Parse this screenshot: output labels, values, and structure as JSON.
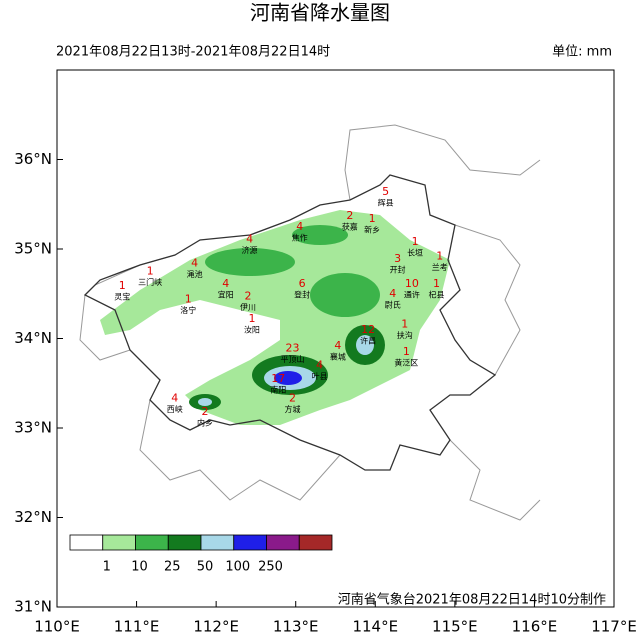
{
  "title": "河南省降水量图",
  "time_range": "2021年08月22日13时-2021年08月22日14时",
  "unit": "单位: mm",
  "map": {
    "xlim": [
      110,
      117
    ],
    "ylim": [
      31,
      37
    ],
    "xticks": [
      {
        "value": 110,
        "label": "110°E"
      },
      {
        "value": 111,
        "label": "111°E"
      },
      {
        "value": 112,
        "label": "112°E"
      },
      {
        "value": 113,
        "label": "113°E"
      },
      {
        "value": 114,
        "label": "114°E"
      },
      {
        "value": 115,
        "label": "115°E"
      },
      {
        "value": 116,
        "label": "116°E"
      },
      {
        "value": 117,
        "label": "117°E"
      }
    ],
    "yticks": [
      {
        "value": 31,
        "label": "31°N"
      },
      {
        "value": 32,
        "label": "32°N"
      },
      {
        "value": 33,
        "label": "33°N"
      },
      {
        "value": 34,
        "label": "34°N"
      },
      {
        "value": 35,
        "label": "35°N"
      },
      {
        "value": 36,
        "label": "36°N"
      }
    ]
  },
  "legend": {
    "colors": [
      "#ffffff",
      "#a6e89a",
      "#3cb44a",
      "#137a1f",
      "#a8d8e8",
      "#1f1fe8",
      "#8a1a8a",
      "#a52828"
    ],
    "thresholds": [
      1,
      10,
      25,
      50,
      100,
      250
    ]
  },
  "stations": [
    {
      "name": "灵宝",
      "value": 1,
      "lon": 110.82,
      "lat": 34.52
    },
    {
      "name": "三门峡",
      "value": 1,
      "lon": 111.17,
      "lat": 34.68
    },
    {
      "name": "渑池",
      "value": 4,
      "lon": 111.73,
      "lat": 34.77
    },
    {
      "name": "洛宁",
      "value": 1,
      "lon": 111.65,
      "lat": 34.37
    },
    {
      "name": "宜阳",
      "value": 4,
      "lon": 112.12,
      "lat": 34.54
    },
    {
      "name": "伊川",
      "value": 2,
      "lon": 112.4,
      "lat": 34.4
    },
    {
      "name": "汝阳",
      "value": 1,
      "lon": 112.45,
      "lat": 34.15
    },
    {
      "name": "西峡",
      "value": 4,
      "lon": 111.48,
      "lat": 33.26
    },
    {
      "name": "内乡",
      "value": 2,
      "lon": 111.86,
      "lat": 33.11
    },
    {
      "name": "南阳",
      "value": 17,
      "lon": 112.78,
      "lat": 33.48
    },
    {
      "name": "方城",
      "value": 2,
      "lon": 112.96,
      "lat": 33.26
    },
    {
      "name": "平顶山",
      "value": 23,
      "lon": 112.96,
      "lat": 33.82
    },
    {
      "name": "叶县",
      "value": 4,
      "lon": 113.3,
      "lat": 33.63
    },
    {
      "name": "襄城",
      "value": 4,
      "lon": 113.53,
      "lat": 33.85
    },
    {
      "name": "许昌",
      "value": 12,
      "lon": 113.91,
      "lat": 34.03
    },
    {
      "name": "登封",
      "value": 6,
      "lon": 113.08,
      "lat": 34.54
    },
    {
      "name": "济源",
      "value": 4,
      "lon": 112.42,
      "lat": 35.04
    },
    {
      "name": "焦作",
      "value": 4,
      "lon": 113.05,
      "lat": 35.18
    },
    {
      "name": "获嘉",
      "value": 2,
      "lon": 113.68,
      "lat": 35.3
    },
    {
      "name": "新乡",
      "value": 1,
      "lon": 113.96,
      "lat": 35.27
    },
    {
      "name": "辉县",
      "value": 5,
      "lon": 114.13,
      "lat": 35.57
    },
    {
      "name": "长垣",
      "value": 1,
      "lon": 114.5,
      "lat": 35.01
    },
    {
      "name": "开封",
      "value": 3,
      "lon": 114.28,
      "lat": 34.82
    },
    {
      "name": "兰考",
      "value": 1,
      "lon": 114.81,
      "lat": 34.85
    },
    {
      "name": "通许",
      "value": 10,
      "lon": 114.46,
      "lat": 34.54
    },
    {
      "name": "杞县",
      "value": 1,
      "lon": 114.77,
      "lat": 34.54
    },
    {
      "name": "尉氏",
      "value": 4,
      "lon": 114.22,
      "lat": 34.43
    },
    {
      "name": "扶沟",
      "value": 1,
      "lon": 114.37,
      "lat": 34.09
    },
    {
      "name": "黄泛区",
      "value": 1,
      "lon": 114.39,
      "lat": 33.78
    }
  ],
  "footer": "河南省气象台2021年08月22日14时10分制作"
}
